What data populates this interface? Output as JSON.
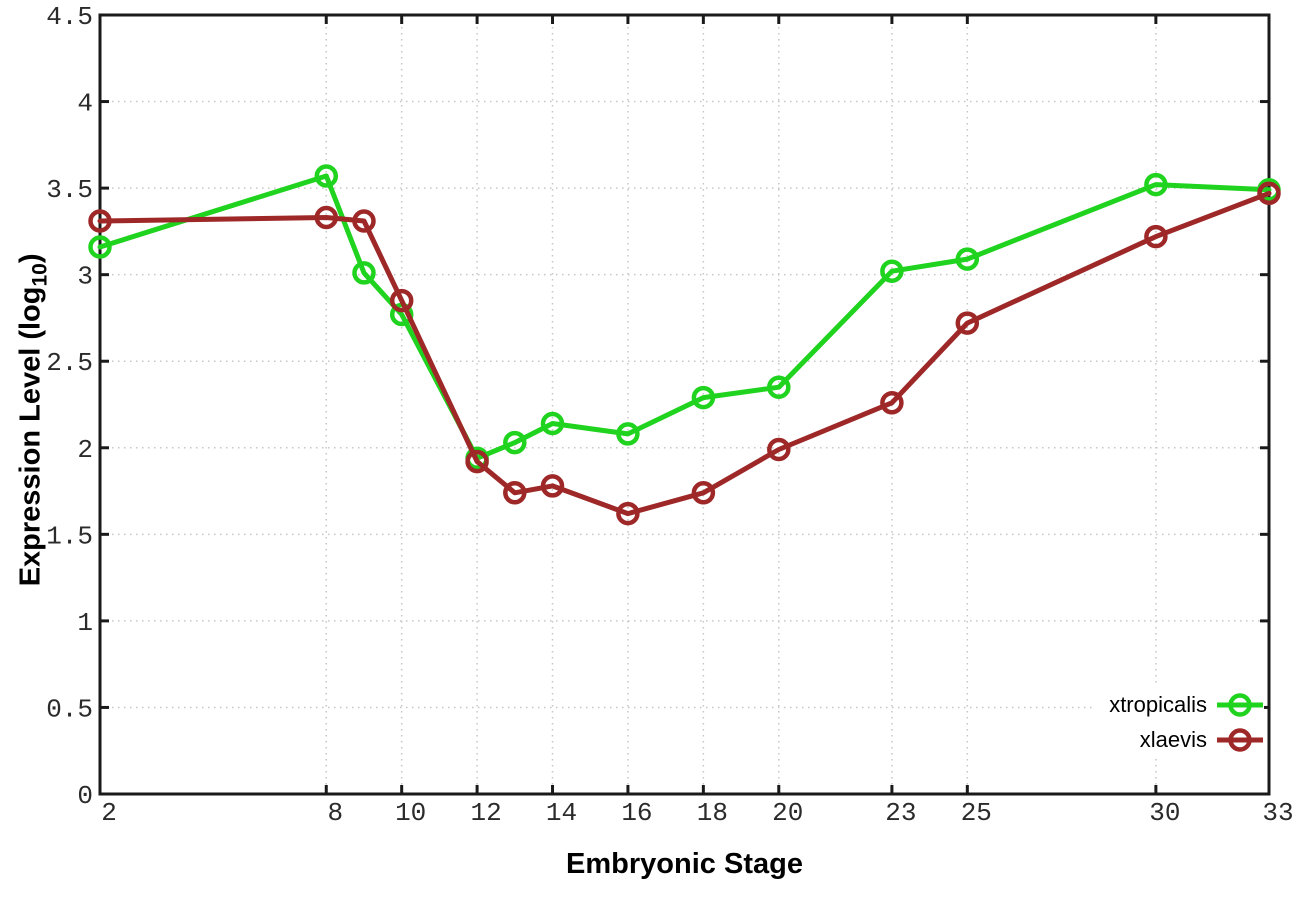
{
  "chart_data": {
    "type": "line",
    "title": "",
    "xlabel": "Embryonic Stage",
    "ylabel": "Expression Level (log10)",
    "ylabel_parts": {
      "prefix": "Expression Level (log",
      "subscript": "10",
      "suffix": ")"
    },
    "xlim": [
      2,
      33
    ],
    "ylim": [
      0,
      4.5
    ],
    "x_ticks": [
      2,
      8,
      10,
      12,
      14,
      16,
      18,
      20,
      23,
      25,
      30,
      33
    ],
    "y_ticks": [
      0,
      0.5,
      1,
      1.5,
      2,
      2.5,
      3,
      3.5,
      4,
      4.5
    ],
    "grid": "dotted",
    "legend_position": "inside-bottom-right",
    "x": [
      2,
      8,
      9,
      10,
      12,
      13,
      14,
      16,
      18,
      20,
      23,
      25,
      30,
      33
    ],
    "series": [
      {
        "name": "xtropicalis",
        "color": "#1fd31f",
        "marker": "open-circle",
        "values": [
          3.16,
          3.57,
          3.01,
          2.77,
          1.94,
          2.03,
          2.14,
          2.08,
          2.29,
          2.35,
          3.02,
          3.09,
          3.52,
          3.49
        ]
      },
      {
        "name": "xlaevis",
        "color": "#9e2828",
        "marker": "open-circle",
        "values": [
          3.31,
          3.33,
          3.31,
          2.85,
          1.92,
          1.74,
          1.78,
          1.62,
          1.74,
          1.99,
          2.26,
          2.72,
          3.22,
          3.47
        ]
      }
    ],
    "style": {
      "background": "#ffffff",
      "axis_color": "#1a1a1a",
      "grid_color": "#c6c6c6",
      "tick_label_color": "#2b2b2b"
    }
  }
}
